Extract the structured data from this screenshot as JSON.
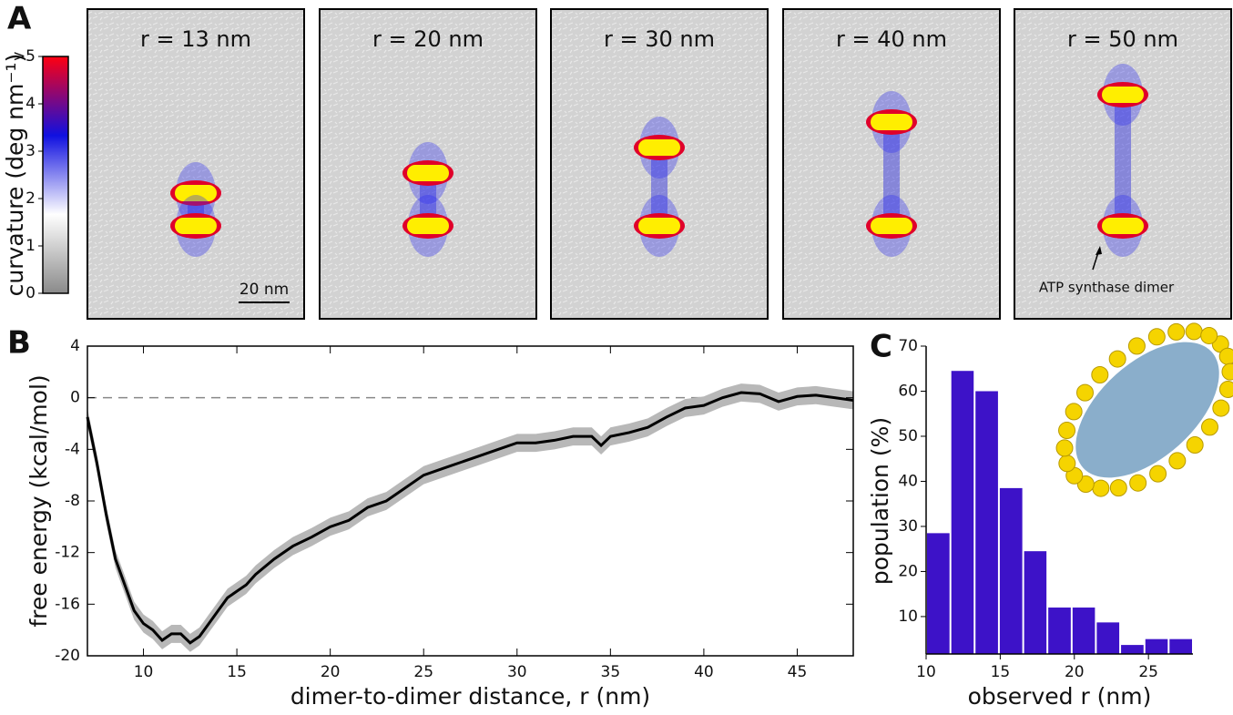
{
  "chart_data": [
    {
      "type": "image-grid",
      "panel_label": "A",
      "colorbar": {
        "label": "curvature (deg nm⁻¹)",
        "lim": [
          0,
          5
        ],
        "ticks": [
          0,
          1,
          2,
          3,
          4,
          {
            "value": 5,
            "label": ">5"
          }
        ],
        "colors": [
          "#8a8a8a",
          "#ffffff",
          "#1010e0",
          "#ff0010"
        ]
      },
      "panels": [
        {
          "title": "r = 13 nm"
        },
        {
          "title": "r = 20 nm"
        },
        {
          "title": "r = 30 nm"
        },
        {
          "title": "r = 40 nm"
        },
        {
          "title": "r = 50 nm"
        }
      ],
      "scale_bar": "20 nm",
      "annotation": "ATP synthase dimer"
    },
    {
      "type": "line",
      "panel_label": "B",
      "x_label": "dimer-to-dimer distance, r (nm)",
      "y_label": "free energy (kcal/mol)",
      "x": [
        7,
        7.5,
        8,
        8.5,
        9,
        9.5,
        10,
        10.5,
        11,
        11.5,
        12,
        12.5,
        13,
        13.5,
        14,
        14.5,
        15,
        15.5,
        16,
        17,
        18,
        19,
        20,
        21,
        22,
        23,
        24,
        25,
        26,
        27,
        28,
        29,
        30,
        31,
        32,
        33,
        34,
        34.5,
        35,
        36,
        37,
        38,
        39,
        40,
        41,
        42,
        43,
        44,
        45,
        46,
        47,
        48
      ],
      "y": [
        -1.5,
        -5,
        -9,
        -12.5,
        -14.5,
        -16.5,
        -17.5,
        -18,
        -18.8,
        -18.3,
        -18.3,
        -19,
        -18.5,
        -17.5,
        -16.5,
        -15.5,
        -15,
        -14.5,
        -13.7,
        -12.5,
        -11.5,
        -10.8,
        -10,
        -9.5,
        -8.5,
        -8,
        -7,
        -6,
        -5.5,
        -5,
        -4.5,
        -4,
        -3.5,
        -3.5,
        -3.3,
        -3,
        -3,
        -3.7,
        -3,
        -2.7,
        -2.3,
        -1.5,
        -0.8,
        -0.6,
        0,
        0.4,
        0.3,
        -0.3,
        0.1,
        0.2,
        0,
        -0.2
      ],
      "error": 0.7,
      "color": "#000000",
      "band_color": "#b8b8b8",
      "xlim": [
        7,
        48
      ],
      "ylim": [
        -20,
        4
      ],
      "xticks": [
        10,
        15,
        20,
        25,
        30,
        35,
        40,
        45
      ],
      "yticks": [
        -20,
        -16,
        -12,
        -8,
        -4,
        0,
        4
      ],
      "zero_line": true
    },
    {
      "type": "histogram",
      "panel_label": "C",
      "x_label": "observed r (nm)",
      "y_label": "population (%)",
      "bins": [
        10,
        11.64,
        13.27,
        14.91,
        16.55,
        18.18,
        19.82,
        21.45,
        23.09,
        24.73,
        26.36,
        28
      ],
      "counts": [
        28.5,
        64.5,
        60,
        38.5,
        24.5,
        12,
        12,
        8.7,
        3.7,
        5,
        5
      ],
      "color": "#3d12c8",
      "xlim": [
        10,
        28
      ],
      "ylim": [
        1.7,
        70
      ],
      "xticks": [
        10,
        15,
        20,
        25
      ],
      "yticks": [
        10,
        20,
        30,
        40,
        50,
        60,
        70
      ]
    }
  ]
}
